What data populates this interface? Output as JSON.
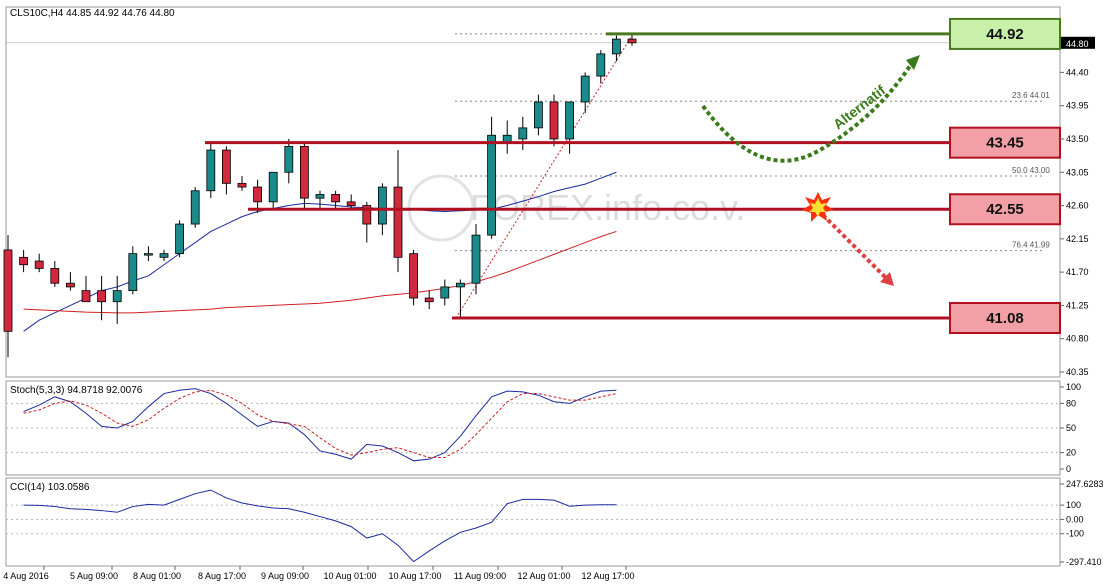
{
  "main_header": "CLS10C,H4  44.85 44.92 44.76 44.80",
  "stoch_header": "Stoch(5,3,3) 94.8718 92.0076",
  "cci_header": "CCI(14) 103.0586",
  "watermark": "FOREX.info.co.v.",
  "alt_label": "Alternatif",
  "colors": {
    "bull": "#1a8a8a",
    "bear": "#d0283c",
    "level_line": "#b01020",
    "top_line": "#4a7a20",
    "box_red": "#f2a0a6",
    "box_green": "#c8f0a8",
    "ma_fast": "#1a2aa0",
    "ma_slow": "#d02020",
    "alt_arrow": "#3a7a1a",
    "down_arrow": "#e04040"
  },
  "chart_data": [
    {
      "type": "candlestick",
      "title": "CLS10C,H4",
      "ylim": [
        40.35,
        45.35
      ],
      "y_ticks": [
        "44.92",
        "44.80",
        "44.40",
        "43.95",
        "43.50",
        "43.05",
        "42.60",
        "42.15",
        "41.70",
        "41.25",
        "40.80",
        "40.35"
      ],
      "x_labels": [
        "4 Aug 2016",
        "5 Aug 09:00",
        "8 Aug 01:00",
        "8 Aug 17:00",
        "9 Aug 09:00",
        "10 Aug 01:00",
        "10 Aug 17:00",
        "11 Aug 09:00",
        "12 Aug 01:00",
        "12 Aug 17:00"
      ],
      "candles": [
        {
          "o": 42.0,
          "h": 42.2,
          "l": 40.55,
          "c": 40.9
        },
        {
          "o": 41.9,
          "h": 42.0,
          "l": 41.7,
          "c": 41.8
        },
        {
          "o": 41.85,
          "h": 41.95,
          "l": 41.7,
          "c": 41.75
        },
        {
          "o": 41.75,
          "h": 41.85,
          "l": 41.5,
          "c": 41.55
        },
        {
          "o": 41.55,
          "h": 41.7,
          "l": 41.45,
          "c": 41.5
        },
        {
          "o": 41.45,
          "h": 41.65,
          "l": 41.3,
          "c": 41.3
        },
        {
          "o": 41.45,
          "h": 41.65,
          "l": 41.05,
          "c": 41.3
        },
        {
          "o": 41.3,
          "h": 41.65,
          "l": 41.0,
          "c": 41.45
        },
        {
          "o": 41.45,
          "h": 42.05,
          "l": 41.4,
          "c": 41.95
        },
        {
          "o": 41.95,
          "h": 42.05,
          "l": 41.85,
          "c": 41.95
        },
        {
          "o": 41.9,
          "h": 42.0,
          "l": 41.85,
          "c": 41.95
        },
        {
          "o": 41.95,
          "h": 42.4,
          "l": 41.9,
          "c": 42.35
        },
        {
          "o": 42.35,
          "h": 42.85,
          "l": 42.3,
          "c": 42.8
        },
        {
          "o": 42.8,
          "h": 43.45,
          "l": 42.7,
          "c": 43.35
        },
        {
          "o": 43.35,
          "h": 43.4,
          "l": 42.75,
          "c": 42.9
        },
        {
          "o": 42.9,
          "h": 43.0,
          "l": 42.8,
          "c": 42.85
        },
        {
          "o": 42.85,
          "h": 42.95,
          "l": 42.5,
          "c": 42.65
        },
        {
          "o": 42.65,
          "h": 43.05,
          "l": 42.55,
          "c": 43.05
        },
        {
          "o": 43.05,
          "h": 43.5,
          "l": 42.9,
          "c": 43.4
        },
        {
          "o": 43.4,
          "h": 43.45,
          "l": 42.55,
          "c": 42.7
        },
        {
          "o": 42.7,
          "h": 42.8,
          "l": 42.55,
          "c": 42.75
        },
        {
          "o": 42.75,
          "h": 42.8,
          "l": 42.55,
          "c": 42.65
        },
        {
          "o": 42.65,
          "h": 42.75,
          "l": 42.55,
          "c": 42.6
        },
        {
          "o": 42.6,
          "h": 42.65,
          "l": 42.1,
          "c": 42.35
        },
        {
          "o": 42.35,
          "h": 42.9,
          "l": 42.2,
          "c": 42.85
        },
        {
          "o": 42.85,
          "h": 43.35,
          "l": 41.7,
          "c": 41.9
        },
        {
          "o": 41.95,
          "h": 42.0,
          "l": 41.25,
          "c": 41.35
        },
        {
          "o": 41.35,
          "h": 41.45,
          "l": 41.2,
          "c": 41.3
        },
        {
          "o": 41.35,
          "h": 41.6,
          "l": 41.25,
          "c": 41.5
        },
        {
          "o": 41.5,
          "h": 41.6,
          "l": 41.1,
          "c": 41.55
        },
        {
          "o": 41.55,
          "h": 42.35,
          "l": 41.4,
          "c": 42.2
        },
        {
          "o": 42.2,
          "h": 43.8,
          "l": 42.15,
          "c": 43.55
        },
        {
          "o": 43.45,
          "h": 43.75,
          "l": 43.3,
          "c": 43.55
        },
        {
          "o": 43.5,
          "h": 43.8,
          "l": 43.35,
          "c": 43.65
        },
        {
          "o": 43.65,
          "h": 44.1,
          "l": 43.55,
          "c": 44.0
        },
        {
          "o": 44.0,
          "h": 44.1,
          "l": 43.4,
          "c": 43.5
        },
        {
          "o": 43.5,
          "h": 44.0,
          "l": 43.3,
          "c": 44.0
        },
        {
          "o": 44.0,
          "h": 44.4,
          "l": 43.85,
          "c": 44.35
        },
        {
          "o": 44.35,
          "h": 44.7,
          "l": 44.25,
          "c": 44.65
        },
        {
          "o": 44.65,
          "h": 44.9,
          "l": 44.55,
          "c": 44.85
        },
        {
          "o": 44.85,
          "h": 44.92,
          "l": 44.76,
          "c": 44.8
        }
      ],
      "ma_fast": [
        40.9,
        41.05,
        41.15,
        41.25,
        41.35,
        41.45,
        41.5,
        41.58,
        41.65,
        41.8,
        41.95,
        42.1,
        42.25,
        42.35,
        42.45,
        42.52,
        42.56,
        42.6,
        42.63,
        42.62,
        42.6,
        42.58,
        42.57,
        42.56,
        42.56,
        42.55,
        42.53,
        42.52,
        42.53,
        42.54,
        42.55,
        42.6,
        42.66,
        42.72,
        42.79,
        42.84,
        42.89,
        42.97,
        43.05
      ],
      "ma_slow": [
        41.2,
        41.19,
        41.18,
        41.17,
        41.16,
        41.155,
        41.15,
        41.15,
        41.16,
        41.17,
        41.18,
        41.19,
        41.2,
        41.22,
        41.23,
        41.24,
        41.25,
        41.26,
        41.27,
        41.28,
        41.3,
        41.32,
        41.35,
        41.38,
        41.4,
        41.42,
        41.45,
        41.48,
        41.52,
        41.57,
        41.63,
        41.7,
        41.78,
        41.86,
        41.94,
        42.02,
        42.1,
        42.18,
        42.25
      ],
      "levels": [
        {
          "label": "44.92",
          "value": 44.92,
          "kind": "resistance"
        },
        {
          "label": "43.45",
          "value": 43.45,
          "kind": "resistance"
        },
        {
          "label": "42.55",
          "value": 42.55,
          "kind": "pivot"
        },
        {
          "label": "41.08",
          "value": 41.08,
          "kind": "support"
        }
      ],
      "fib_labels": [
        {
          "label": "23.6  44.01",
          "value": 44.01
        },
        {
          "label": "50.0  43.00",
          "value": 43.0
        },
        {
          "label": "76.4  41.99",
          "value": 41.99
        }
      ]
    },
    {
      "type": "line",
      "title": "Stoch(5,3,3) 94.8718 92.0076",
      "ylim": [
        0,
        100
      ],
      "y_ticks": [
        "100",
        "80",
        "50",
        "20",
        "0"
      ],
      "main": [
        70,
        78,
        88,
        82,
        68,
        52,
        50,
        58,
        76,
        92,
        96,
        98,
        92,
        80,
        66,
        52,
        58,
        56,
        42,
        22,
        18,
        12,
        30,
        28,
        20,
        10,
        12,
        20,
        40,
        65,
        88,
        95,
        94,
        90,
        82,
        80,
        88,
        95,
        96
      ],
      "signal": [
        68,
        72,
        80,
        83,
        78,
        68,
        56,
        52,
        60,
        74,
        86,
        94,
        96,
        90,
        80,
        66,
        58,
        55,
        52,
        38,
        25,
        17,
        20,
        24,
        26,
        20,
        14,
        14,
        24,
        42,
        62,
        82,
        92,
        92,
        88,
        84,
        84,
        88,
        92
      ]
    },
    {
      "type": "line",
      "title": "CCI(14) 103.0586",
      "ylim": [
        -297.41,
        247.6283
      ],
      "y_ticks": [
        "247.6283",
        "100",
        "0.00",
        "-100",
        "-297.410"
      ],
      "values": [
        100,
        98,
        90,
        75,
        70,
        62,
        50,
        90,
        105,
        100,
        140,
        180,
        205,
        150,
        115,
        95,
        80,
        75,
        50,
        20,
        -10,
        -50,
        -130,
        -100,
        -180,
        -295,
        -220,
        -150,
        -90,
        -60,
        -20,
        110,
        140,
        140,
        135,
        92,
        100,
        103,
        103
      ]
    }
  ]
}
